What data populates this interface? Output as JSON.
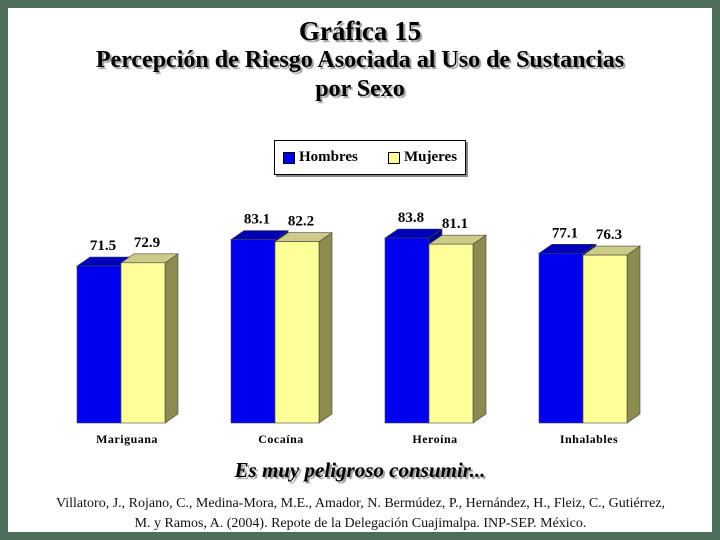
{
  "title_line1": "Gráfica 15",
  "title_line2": "Percepción de Riesgo Asociada al Uso de Sustancias",
  "title_line3": "por Sexo",
  "subtitle": "Es muy peligroso consumir...",
  "source": "Villatoro, J., Rojano, C., Medina-Mora, M.E., Amador, N. Bermúdez, P., Hernández, H., Fleiz, C., Gutiérrez, M. y Ramos, A. (2004). Repote de la Delegación Cuajimalpa. INP-SEP. México.",
  "colors": {
    "hombres": "#0000ee",
    "mujeres": "#ffff99",
    "border": "#4e6e5c"
  },
  "chart_data": {
    "type": "bar",
    "categories": [
      "Mariguana",
      "Cocaína",
      "Heroína",
      "Inhalables"
    ],
    "series": [
      {
        "name": "Hombres",
        "values": [
          71.5,
          83.1,
          83.8,
          77.1
        ]
      },
      {
        "name": "Mujeres",
        "values": [
          72.9,
          82.2,
          81.1,
          76.3
        ]
      }
    ],
    "ylim": [
      0,
      85
    ],
    "legend_position": "top-center",
    "grid": false,
    "data_labels": true,
    "style": "3d-bar"
  }
}
